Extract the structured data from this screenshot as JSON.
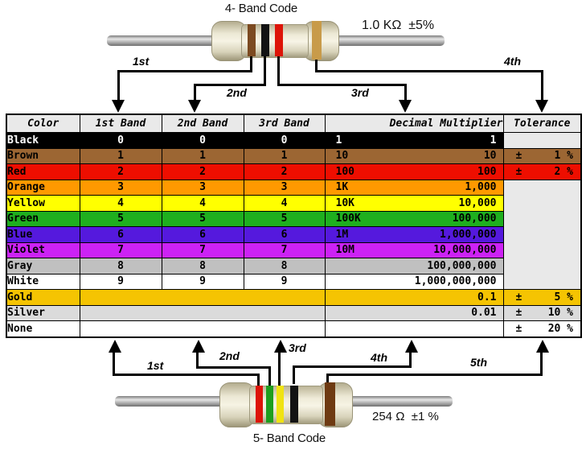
{
  "top": {
    "title": "4- Band Code",
    "value_label": "1.0 KΩ  ±5%",
    "pointers": [
      "1st",
      "2nd",
      "3rd",
      "4th"
    ],
    "bands": [
      {
        "name": "brown",
        "color": "#7C4A21"
      },
      {
        "name": "black",
        "color": "#131313"
      },
      {
        "name": "red",
        "color": "#DD1408"
      },
      {
        "name": "gold",
        "color": "#C89B4A"
      }
    ]
  },
  "table": {
    "headers": [
      "Color",
      "1st Band",
      "2nd Band",
      "3rd Band",
      "Decimal Multiplier",
      "Tolerance"
    ],
    "plus_minus": "±",
    "header_bg": "#E9E9E9",
    "empty_bg": "#E9E9E9",
    "rows": [
      {
        "name": "Black",
        "bg": "#000000",
        "fg": "#FFFFFF",
        "bands": [
          "0",
          "0",
          "0"
        ],
        "mult_short": "1",
        "mult_full": "1",
        "tol": null,
        "tol_cell": "empty"
      },
      {
        "name": "Brown",
        "bg": "#9C6633",
        "fg": "#000000",
        "bands": [
          "1",
          "1",
          "1"
        ],
        "mult_short": "10",
        "mult_full": "10",
        "tol": "1 %",
        "tol_cell": "self"
      },
      {
        "name": "Red",
        "bg": "#EE0E00",
        "fg": "#000000",
        "bands": [
          "2",
          "2",
          "2"
        ],
        "mult_short": "100",
        "mult_full": "100",
        "tol": "2 %",
        "tol_cell": "self"
      },
      {
        "name": "Orange",
        "bg": "#FF9900",
        "fg": "#000000",
        "bands": [
          "3",
          "3",
          "3"
        ],
        "mult_short": "1K",
        "mult_full": "1,000",
        "tol": null,
        "tol_cell": "merged-start"
      },
      {
        "name": "Yellow",
        "bg": "#FFFF00",
        "fg": "#000000",
        "bands": [
          "4",
          "4",
          "4"
        ],
        "mult_short": "10K",
        "mult_full": "10,000",
        "tol": null,
        "tol_cell": "skip"
      },
      {
        "name": "Green",
        "bg": "#1FAF1F",
        "fg": "#000000",
        "bands": [
          "5",
          "5",
          "5"
        ],
        "mult_short": "100K",
        "mult_full": "100,000",
        "tol": null,
        "tol_cell": "skip"
      },
      {
        "name": "Blue",
        "bg": "#5519DD",
        "fg": "#000000",
        "bands": [
          "6",
          "6",
          "6"
        ],
        "mult_short": "1M",
        "mult_full": "1,000,000",
        "tol": null,
        "tol_cell": "skip"
      },
      {
        "name": "Violet",
        "bg": "#CC22F5",
        "fg": "#000000",
        "bands": [
          "7",
          "7",
          "7"
        ],
        "mult_short": "10M",
        "mult_full": "10,000,000",
        "tol": null,
        "tol_cell": "skip"
      },
      {
        "name": "Gray",
        "bg": "#C0C0C0",
        "fg": "#000000",
        "bands": [
          "8",
          "8",
          "8"
        ],
        "mult_short": "",
        "mult_full": "100,000,000",
        "tol": null,
        "tol_cell": "skip"
      },
      {
        "name": "White",
        "bg": "#FFFFFF",
        "fg": "#000000",
        "bands": [
          "9",
          "9",
          "9"
        ],
        "mult_short": "",
        "mult_full": "1,000,000,000",
        "tol": null,
        "tol_cell": "skip"
      },
      {
        "name": "Gold",
        "bg": "#F5C402",
        "fg": "#000000",
        "bands_merged": true,
        "mult_short": "",
        "mult_full": "0.1",
        "tol": "5 %",
        "tol_cell": "self"
      },
      {
        "name": "Silver",
        "bg": "#DBDBDB",
        "fg": "#000000",
        "bands_merged": true,
        "mult_short": "",
        "mult_full": "0.01",
        "tol": "10 %",
        "tol_cell": "self"
      },
      {
        "name": "None",
        "bg": "#FFFFFF",
        "fg": "#000000",
        "bands_merged": true,
        "mult_short": "",
        "mult_full": "",
        "tol": "20 %",
        "tol_cell": "self"
      }
    ]
  },
  "bottom": {
    "title": "5- Band Code",
    "value_label": "254 Ω  ±1 %",
    "pointers": [
      "1st",
      "2nd",
      "3rd",
      "4th",
      "5th"
    ],
    "bands": [
      {
        "name": "red",
        "color": "#DD1408"
      },
      {
        "name": "green",
        "color": "#1E9E1E"
      },
      {
        "name": "yellow",
        "color": "#F0E312"
      },
      {
        "name": "black",
        "color": "#131313"
      },
      {
        "name": "brown",
        "color": "#6E3A12"
      }
    ]
  }
}
